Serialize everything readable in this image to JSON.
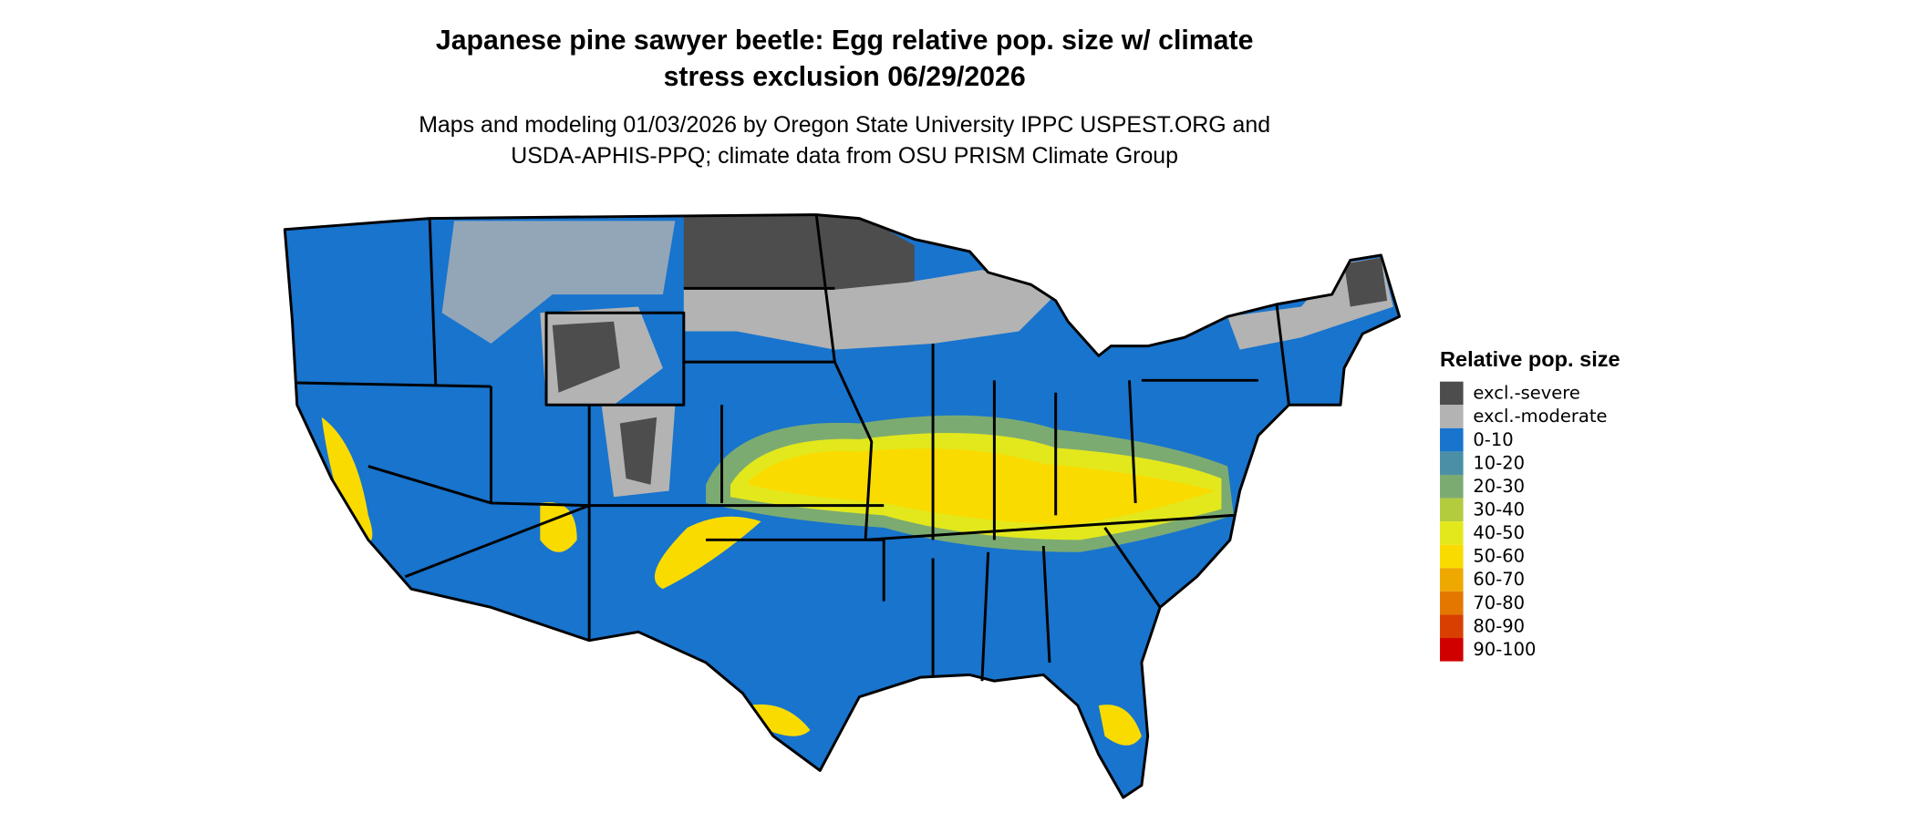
{
  "header": {
    "title": [
      "Japanese pine sawyer beetle: Egg relative pop. size w/ climate",
      "stress exclusion 06/29/2026"
    ],
    "subtitle": [
      "Maps and modeling 01/03/2026 by Oregon State University IPPC USPEST.ORG and",
      "USDA-APHIS-PPQ; climate data from OSU PRISM Climate Group"
    ]
  },
  "legend": {
    "title": "Relative pop. size",
    "items": [
      {
        "label": "excl.-severe",
        "color": "#4d4d4d"
      },
      {
        "label": "excl.-moderate",
        "color": "#b3b3b3"
      },
      {
        "label": "0-10",
        "color": "#1874cd"
      },
      {
        "label": "10-20",
        "color": "#4a8fa6"
      },
      {
        "label": "20-30",
        "color": "#7cab72"
      },
      {
        "label": "30-40",
        "color": "#b2cc3e"
      },
      {
        "label": "40-50",
        "color": "#e3e81c"
      },
      {
        "label": "50-60",
        "color": "#fadb00"
      },
      {
        "label": "60-70",
        "color": "#eea800"
      },
      {
        "label": "70-80",
        "color": "#e47700"
      },
      {
        "label": "80-90",
        "color": "#d93f00"
      },
      {
        "label": "90-100",
        "color": "#d00000"
      }
    ]
  }
}
